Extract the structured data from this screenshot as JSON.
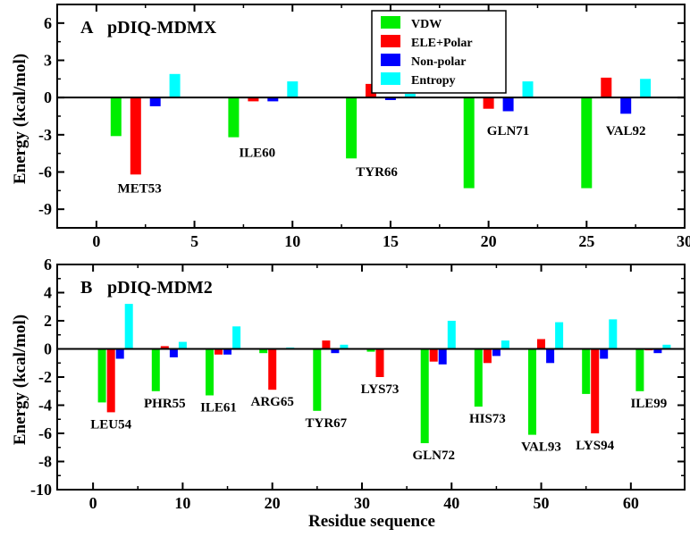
{
  "chart_data": {
    "ylabel": "Energy (kcal/mol)",
    "xlabel": "Residue sequence",
    "colors": {
      "VDW": "#00ee00",
      "ELE+Polar": "#ff0000",
      "Non-polar": "#0000ff",
      "Entropy": "#00ffff"
    },
    "legend": [
      "VDW",
      "ELE+Polar",
      "Non-polar",
      "Entropy"
    ],
    "panels": [
      {
        "type": "bar",
        "letter": "A",
        "title": "pDIQ-MDMX",
        "xlim": [
          -2,
          30
        ],
        "ylim": [
          -10.5,
          7.5
        ],
        "xticks": [
          0,
          5,
          10,
          15,
          20,
          25,
          30
        ],
        "yticks": [
          6,
          3,
          0,
          -3,
          -6,
          -9
        ],
        "groups": [
          {
            "residue": "MET53",
            "x": [
              1,
              2,
              3,
              4
            ],
            "VDW": -3.1,
            "ELE+Polar": -6.2,
            "Non-polar": -0.7,
            "Entropy": 1.9
          },
          {
            "residue": "ILE60",
            "x": [
              7,
              8,
              9,
              10
            ],
            "VDW": -3.2,
            "ELE+Polar": -0.3,
            "Non-polar": -0.3,
            "Entropy": 1.3
          },
          {
            "residue": "TYR66",
            "x": [
              13,
              14,
              15,
              16
            ],
            "VDW": -4.9,
            "ELE+Polar": 1.1,
            "Non-polar": -0.2,
            "Entropy": 0.3
          },
          {
            "residue": "GLN71",
            "x": [
              19,
              20,
              21,
              22
            ],
            "VDW": -7.3,
            "ELE+Polar": -0.9,
            "Non-polar": -1.1,
            "Entropy": 1.3
          },
          {
            "residue": "VAL92",
            "x": [
              25,
              26,
              27,
              28
            ],
            "VDW": -7.3,
            "ELE+Polar": 1.6,
            "Non-polar": -1.3,
            "Entropy": 1.5
          }
        ]
      },
      {
        "type": "bar",
        "letter": "B",
        "title": "pDIQ-MDM2",
        "xlim": [
          -4,
          66
        ],
        "ylim": [
          -10,
          6
        ],
        "xticks": [
          0,
          10,
          20,
          30,
          40,
          50,
          60
        ],
        "yticks": [
          6,
          4,
          2,
          0,
          -2,
          -4,
          -6,
          -8,
          -10
        ],
        "groups": [
          {
            "residue": "LEU54",
            "x": [
              1,
              2,
              3,
              4
            ],
            "VDW": -3.8,
            "ELE+Polar": -4.5,
            "Non-polar": -0.7,
            "Entropy": 3.2
          },
          {
            "residue": "PHR55",
            "x": [
              7,
              8,
              9,
              10
            ],
            "VDW": -3.0,
            "ELE+Polar": 0.2,
            "Non-polar": -0.6,
            "Entropy": 0.5
          },
          {
            "residue": "ILE61",
            "x": [
              13,
              14,
              15,
              16
            ],
            "VDW": -3.3,
            "ELE+Polar": -0.4,
            "Non-polar": -0.4,
            "Entropy": 1.6
          },
          {
            "residue": "ARG65",
            "x": [
              19,
              20,
              21,
              22
            ],
            "VDW": -0.3,
            "ELE+Polar": -2.9,
            "Non-polar": 0.0,
            "Entropy": 0.1
          },
          {
            "residue": "TYR67",
            "x": [
              25,
              26,
              27,
              28
            ],
            "VDW": -4.4,
            "ELE+Polar": 0.6,
            "Non-polar": -0.3,
            "Entropy": 0.3
          },
          {
            "residue": "LYS73",
            "x": [
              31,
              32,
              33,
              34
            ],
            "VDW": -0.2,
            "ELE+Polar": -2.0,
            "Non-polar": 0.0,
            "Entropy": 0.0
          },
          {
            "residue": "GLN72",
            "x": [
              37,
              38,
              39,
              40
            ],
            "VDW": -6.7,
            "ELE+Polar": -0.9,
            "Non-polar": -1.1,
            "Entropy": 2.0
          },
          {
            "residue": "HIS73",
            "x": [
              43,
              44,
              45,
              46
            ],
            "VDW": -4.1,
            "ELE+Polar": -1.0,
            "Non-polar": -0.5,
            "Entropy": 0.6
          },
          {
            "residue": "VAL93",
            "x": [
              49,
              50,
              51,
              52
            ],
            "VDW": -6.1,
            "ELE+Polar": 0.7,
            "Non-polar": -1.0,
            "Entropy": 1.9
          },
          {
            "residue": "LYS94",
            "x": [
              55,
              56,
              57,
              58
            ],
            "VDW": -3.2,
            "ELE+Polar": -6.0,
            "Non-polar": -0.7,
            "Entropy": 2.1
          },
          {
            "residue": "ILE99",
            "x": [
              61,
              62,
              63,
              64
            ],
            "VDW": -3.0,
            "ELE+Polar": -0.1,
            "Non-polar": -0.3,
            "Entropy": 0.3
          }
        ]
      }
    ]
  }
}
